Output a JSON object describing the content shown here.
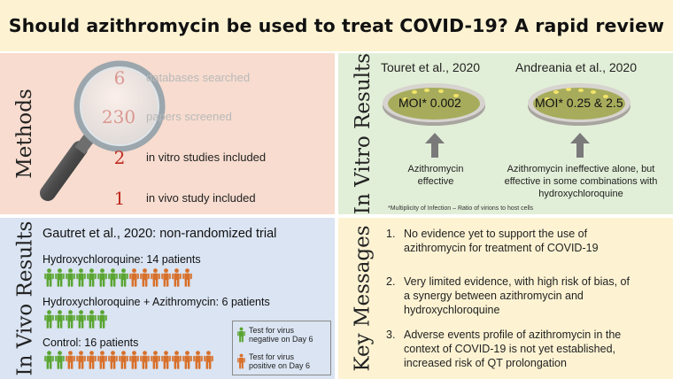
{
  "title": "Should azithromycin be used to treat COVID-19? A rapid review",
  "methods": {
    "label": "Methods",
    "items": [
      {
        "number": "6",
        "text": "databases searched",
        "faded": true
      },
      {
        "number": "230",
        "text": "papers screened",
        "faded": true
      },
      {
        "number": "2",
        "text": "in vitro studies included",
        "faded": false
      },
      {
        "number": "1",
        "text": "in vivo study included",
        "faded": false
      }
    ]
  },
  "invitro": {
    "label": "In Vitro Results",
    "studies": [
      {
        "name": "Touret et al., 2020",
        "moi": "MOI* 0.002",
        "result": [
          "Azithromycin",
          "effective"
        ]
      },
      {
        "name": "Andreania et al., 2020",
        "moi": "MOI* 0.25 & 2.5",
        "result": [
          "Azithromycin ineffective alone, but",
          "effective in some combinations with",
          "hydroxychloroquine"
        ]
      }
    ],
    "footnote": "*Multiplicity of Infection – Ratio of virions to host cells"
  },
  "invivo": {
    "label": "In Vivo Results",
    "heading": "Gautret et al., 2020: non-randomized trial",
    "groups": [
      {
        "label": "Hydroxychloroquine: 14 patients",
        "negative": 8,
        "positive": 6
      },
      {
        "label": "Hydroxychloroquine + Azithromycin: 6 patients",
        "negative": 6,
        "positive": 0
      },
      {
        "label": "Control: 16 patients",
        "negative": 2,
        "positive": 14
      }
    ],
    "legend": [
      {
        "text": [
          "Test for virus",
          "negative on Day 6"
        ],
        "color": "#5aa532"
      },
      {
        "text": [
          "Test for virus",
          "positive on Day 6"
        ],
        "color": "#d8702a"
      }
    ]
  },
  "key_messages": {
    "label": "Key Messages",
    "items": [
      {
        "num": "1.",
        "lines": [
          "No evidence yet to support the use of",
          "azithromycin for treatment of COVID-19"
        ]
      },
      {
        "num": "2.",
        "lines": [
          "Very limited evidence, with high risk of bias, of",
          "a synergy between azithromycin and",
          "hydroxychloroquine"
        ]
      },
      {
        "num": "3.",
        "lines": [
          "Adverse events profile of azithromycin in the",
          "context of COVID-19 is not yet established,",
          "increased risk of QT prolongation"
        ]
      }
    ]
  },
  "colors": {
    "negative": "#5aa532",
    "positive": "#d8702a",
    "emphasis_number": "#c0281e"
  },
  "icons": [
    "magnifying-glass-icon",
    "petri-dish-icon",
    "up-arrow-icon",
    "person-icon"
  ]
}
